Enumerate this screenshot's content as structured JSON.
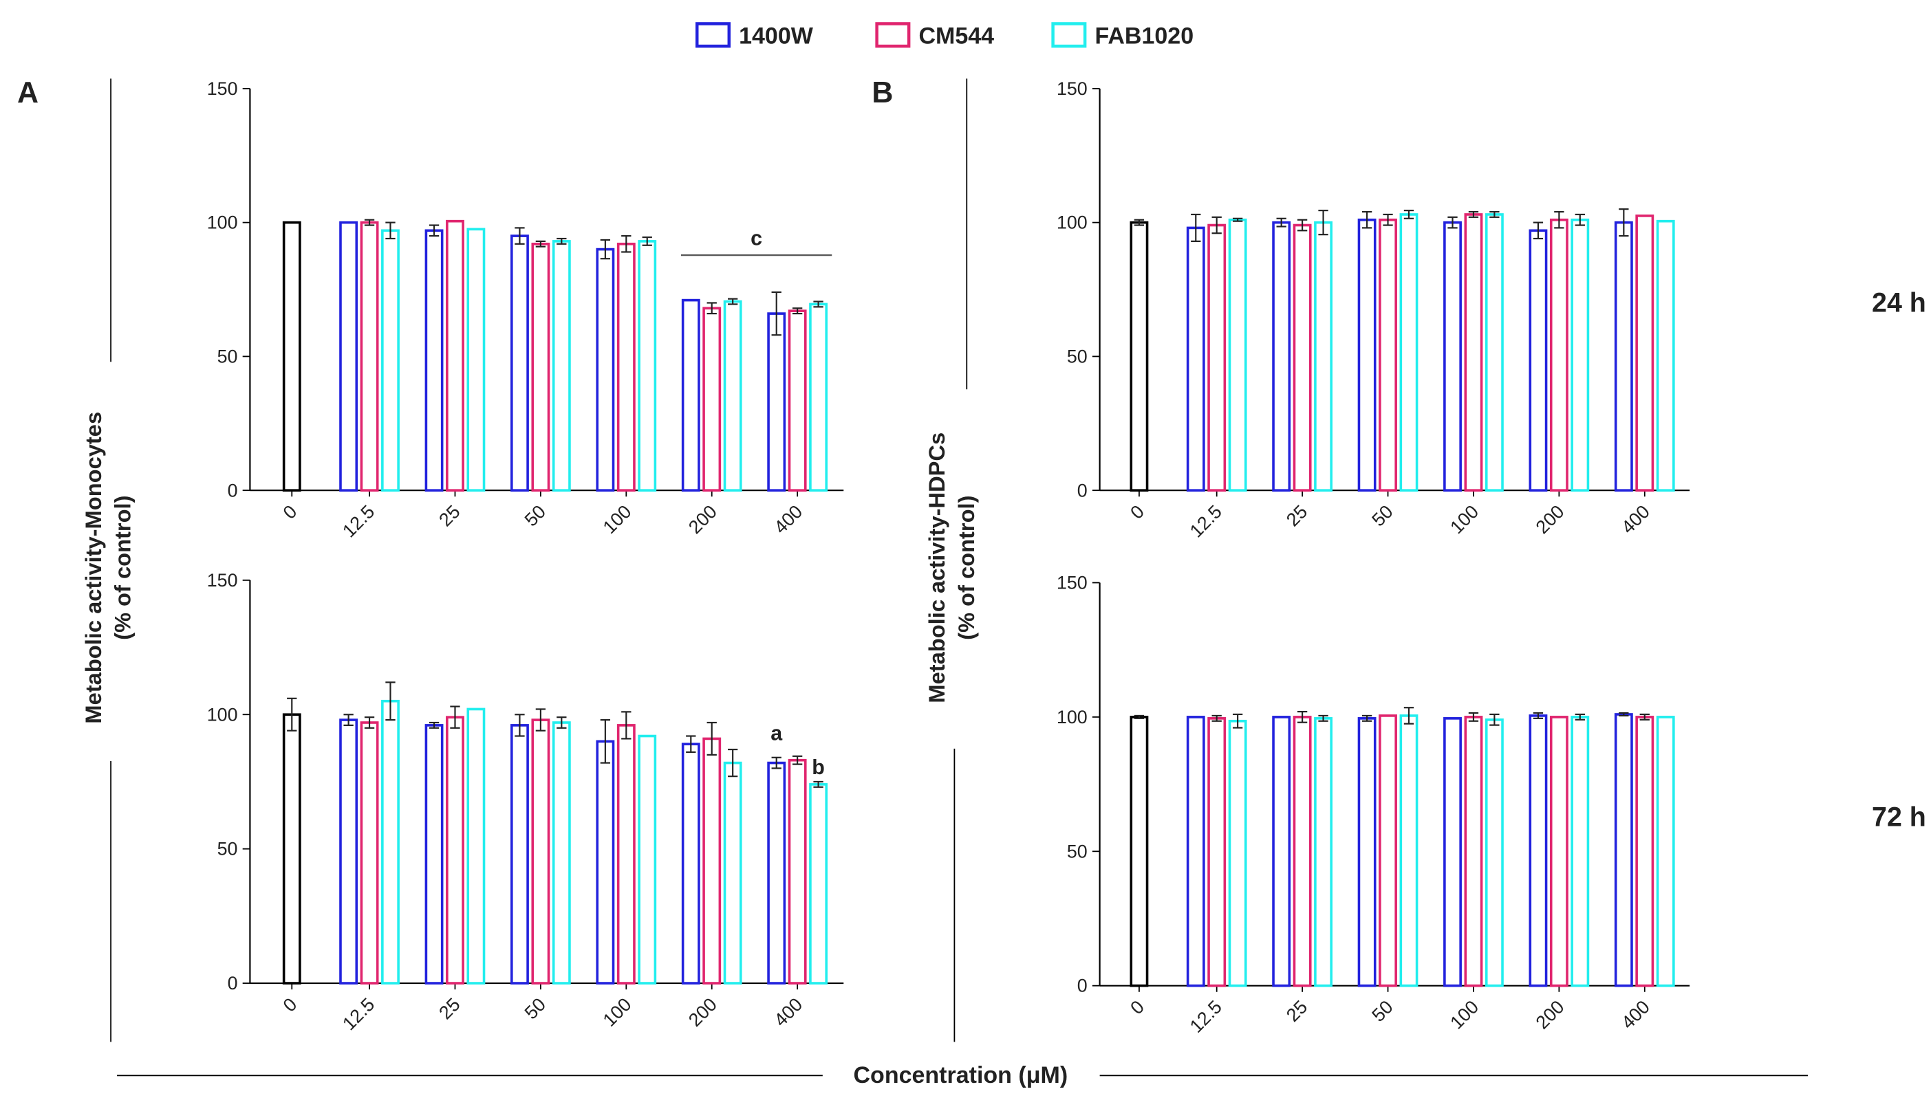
{
  "legend_title": null,
  "panels": [
    "A",
    "B"
  ],
  "y_labels": [
    [
      "Metabolic activity-Monocytes",
      "(% of control)"
    ],
    [
      "Metabolic activity-HDPCs",
      "(% of control)"
    ]
  ],
  "x_label": "Concentration (μM)",
  "time_labels": [
    "24 h",
    "72 h"
  ],
  "chart_data": [
    {
      "type": "bar",
      "categories": [
        "0",
        "12.5",
        "25",
        "50",
        "100",
        "200",
        "400"
      ],
      "ylim": [
        0,
        150
      ],
      "yticks": [
        0,
        50,
        100,
        150
      ],
      "control": {
        "color": "#000000",
        "values": [
          100
        ],
        "errors": [
          0
        ]
      },
      "series": [
        {
          "name": "1400W",
          "color": "#2222dd",
          "values": [
            null,
            100,
            97,
            95,
            90,
            71,
            66
          ],
          "errors": [
            null,
            0,
            2,
            3,
            3.5,
            0,
            8
          ]
        },
        {
          "name": "CM544",
          "color": "#e0256e",
          "values": [
            null,
            100,
            100.5,
            92,
            92,
            68,
            67
          ],
          "errors": [
            null,
            1,
            0,
            1,
            3,
            2,
            1
          ]
        },
        {
          "name": "FAB1020",
          "color": "#22eeee",
          "values": [
            null,
            97,
            97.5,
            93,
            93,
            70.5,
            69.5
          ],
          "errors": [
            null,
            3,
            0,
            1,
            1.5,
            1,
            1
          ]
        }
      ],
      "annotations": [
        "c"
      ]
    },
    {
      "type": "bar",
      "categories": [
        "0",
        "12.5",
        "25",
        "50",
        "100",
        "200",
        "400"
      ],
      "ylim": [
        0,
        150
      ],
      "yticks": [
        0,
        50,
        100,
        150
      ],
      "control": {
        "color": "#000000",
        "values": [
          100
        ],
        "errors": [
          6
        ]
      },
      "series": [
        {
          "name": "1400W",
          "color": "#2222dd",
          "values": [
            null,
            98,
            96,
            96,
            90,
            89,
            82
          ],
          "errors": [
            null,
            2,
            1,
            4,
            8,
            3,
            2
          ]
        },
        {
          "name": "CM544",
          "color": "#e0256e",
          "values": [
            null,
            97,
            99,
            98,
            96,
            91,
            83
          ],
          "errors": [
            null,
            2,
            4,
            4,
            5,
            6,
            1.5
          ]
        },
        {
          "name": "FAB1020",
          "color": "#22eeee",
          "values": [
            null,
            105,
            102,
            97,
            92,
            82,
            74
          ],
          "errors": [
            null,
            7,
            0,
            2,
            0,
            5,
            1
          ]
        }
      ],
      "annotations": [
        "a",
        "b"
      ]
    },
    {
      "type": "bar",
      "categories": [
        "0",
        "12.5",
        "25",
        "50",
        "100",
        "200",
        "400"
      ],
      "ylim": [
        0,
        150
      ],
      "yticks": [
        0,
        50,
        100,
        150
      ],
      "control": {
        "color": "#000000",
        "values": [
          100
        ],
        "errors": [
          1
        ]
      },
      "series": [
        {
          "name": "1400W",
          "color": "#2222dd",
          "values": [
            null,
            98,
            100,
            101,
            100,
            97,
            100
          ],
          "errors": [
            null,
            5,
            1.5,
            3,
            2,
            3,
            5
          ]
        },
        {
          "name": "CM544",
          "color": "#e0256e",
          "values": [
            null,
            99,
            99,
            101,
            103,
            101,
            102.5
          ],
          "errors": [
            null,
            3,
            2,
            2,
            1,
            3,
            0
          ]
        },
        {
          "name": "FAB1020",
          "color": "#22eeee",
          "values": [
            null,
            101,
            100,
            103,
            103,
            101,
            100.5
          ],
          "errors": [
            null,
            0.5,
            4.5,
            1.5,
            1,
            2,
            0
          ]
        }
      ]
    },
    {
      "type": "bar",
      "categories": [
        "0",
        "12.5",
        "25",
        "50",
        "100",
        "200",
        "400"
      ],
      "ylim": [
        0,
        150
      ],
      "yticks": [
        0,
        50,
        100,
        150
      ],
      "control": {
        "color": "#000000",
        "values": [
          100
        ],
        "errors": [
          0.5
        ]
      },
      "series": [
        {
          "name": "1400W",
          "color": "#2222dd",
          "values": [
            null,
            100,
            100,
            99.5,
            99.5,
            100.5,
            101
          ],
          "errors": [
            null,
            0,
            0,
            1,
            0,
            1,
            0.5
          ]
        },
        {
          "name": "CM544",
          "color": "#e0256e",
          "values": [
            null,
            99.5,
            100,
            100.5,
            100,
            100,
            100
          ],
          "errors": [
            null,
            1,
            2,
            0,
            1.5,
            0,
            1
          ]
        },
        {
          "name": "FAB1020",
          "color": "#22eeee",
          "values": [
            null,
            98.5,
            99.5,
            100.5,
            99,
            100,
            100
          ],
          "errors": [
            null,
            2.5,
            1,
            3,
            2,
            1,
            0
          ]
        }
      ]
    }
  ]
}
